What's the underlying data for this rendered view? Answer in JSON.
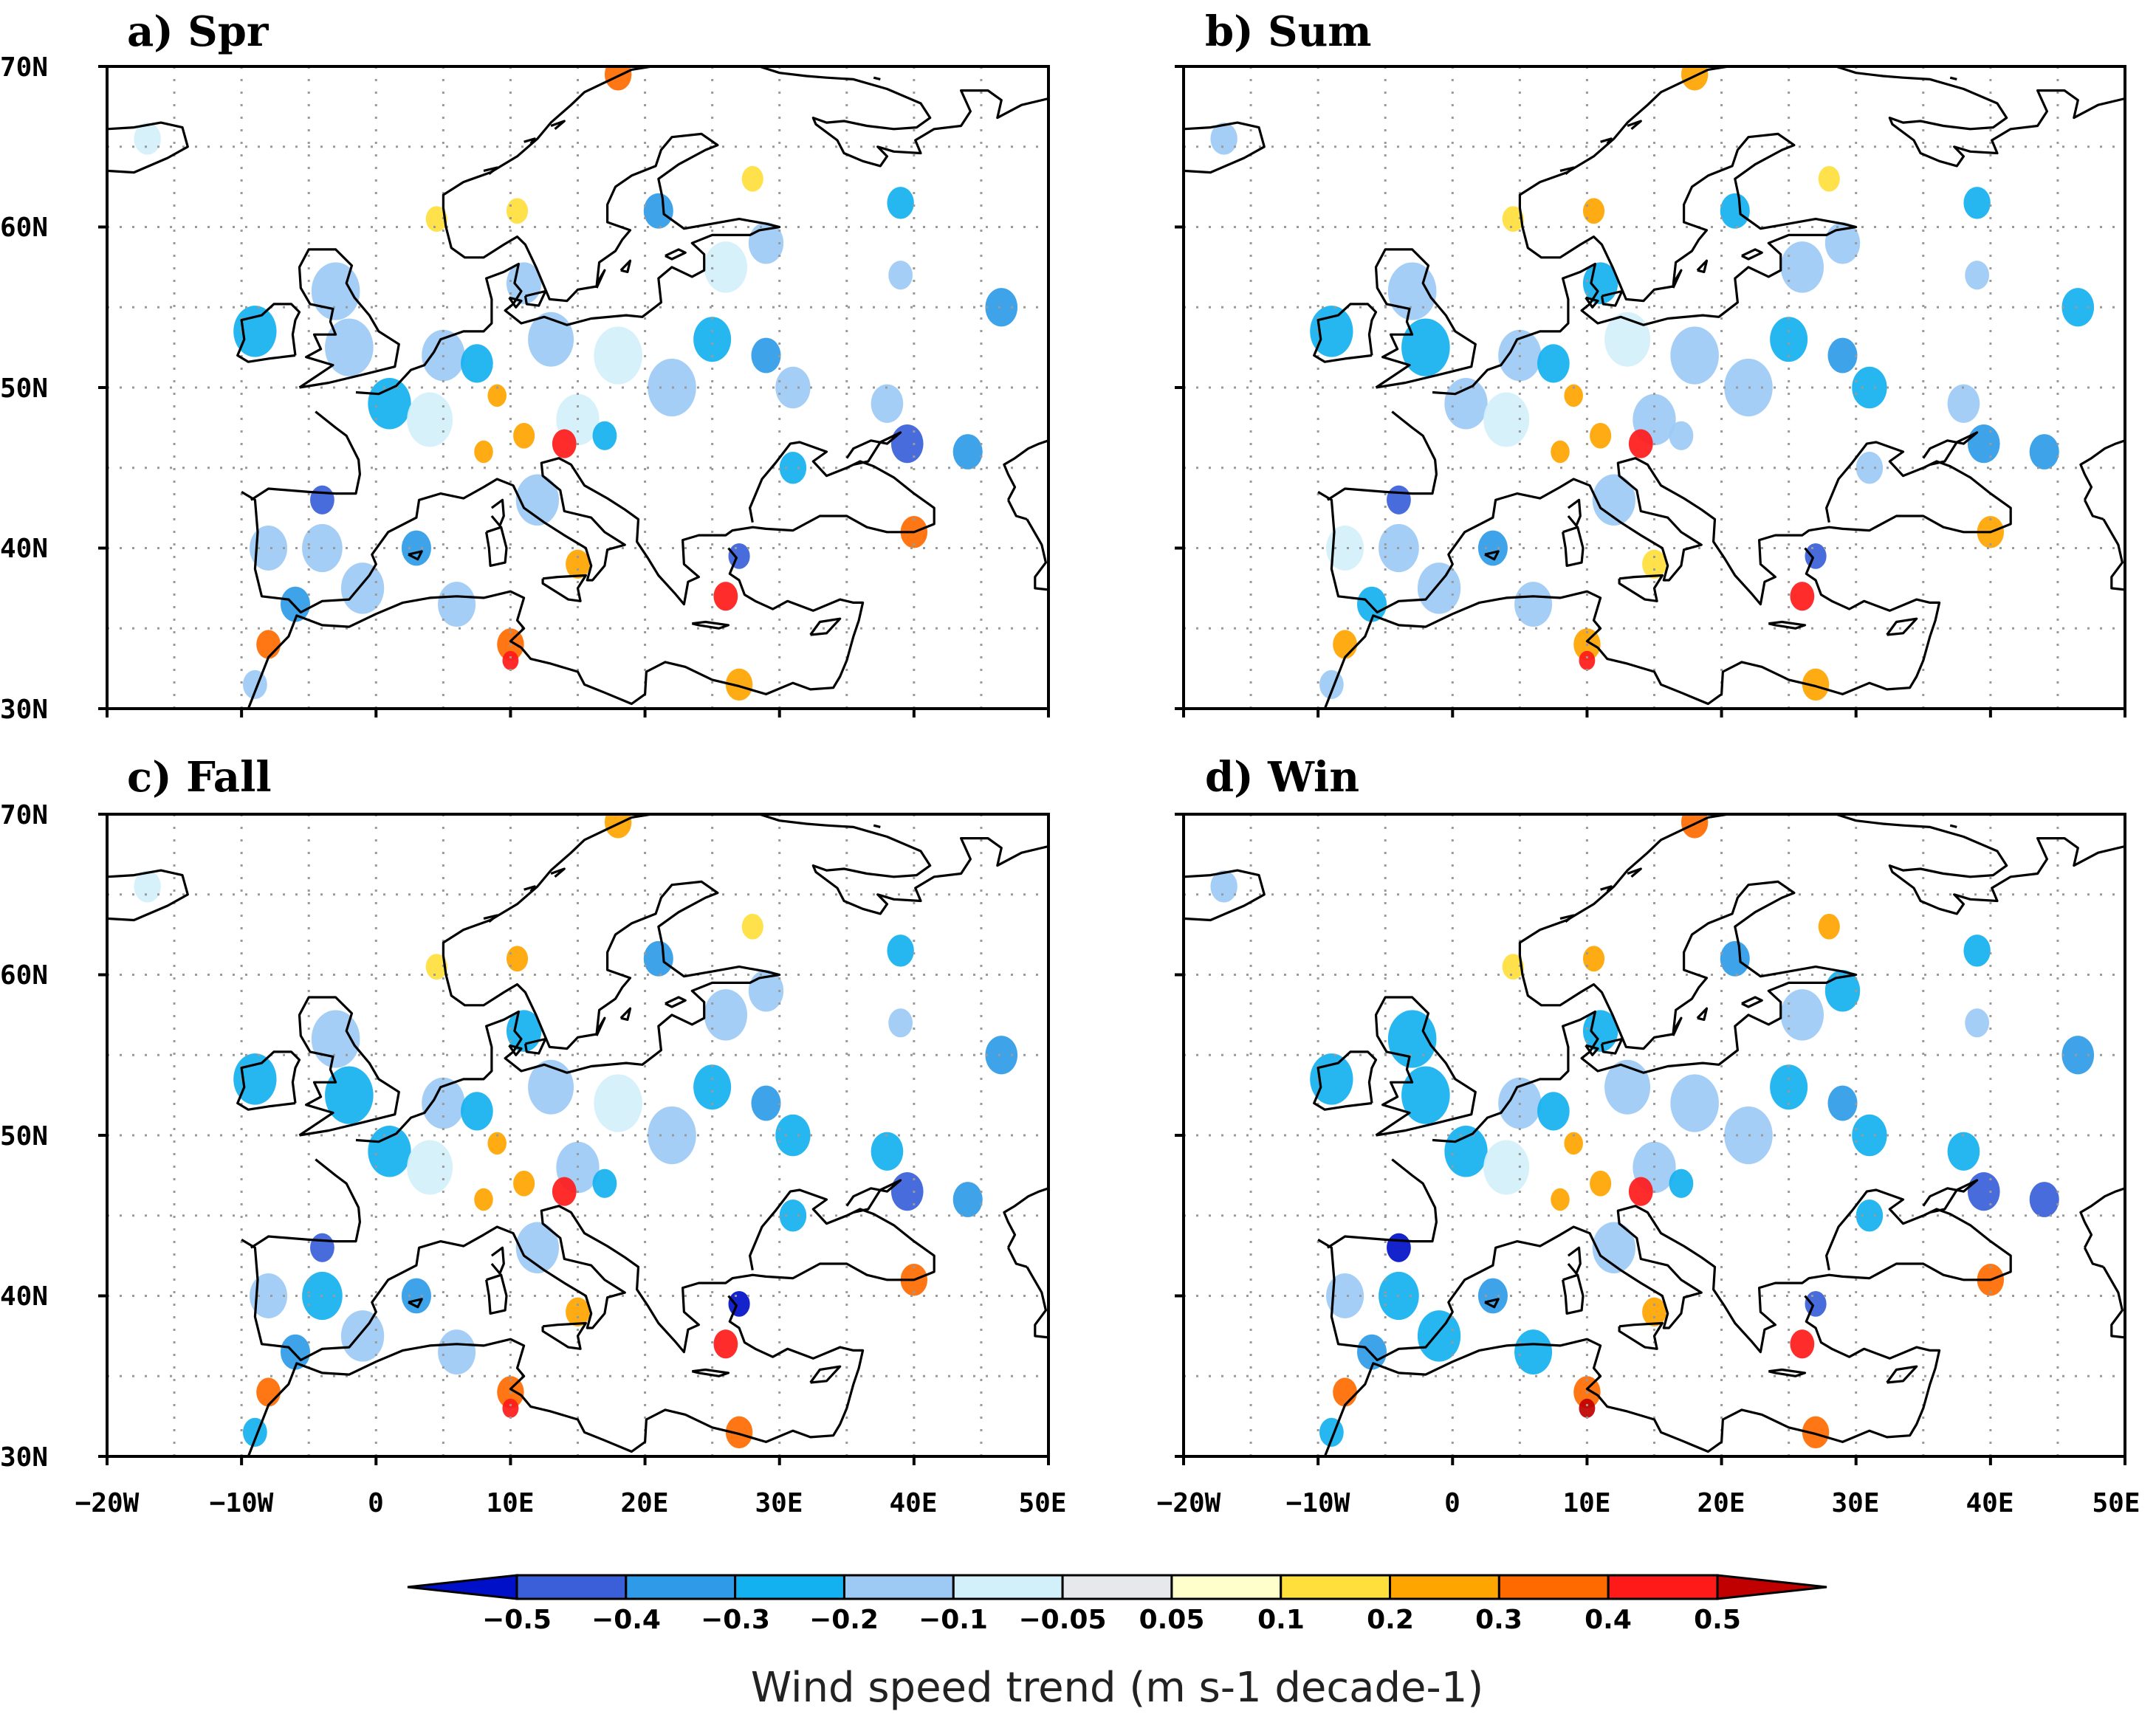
{
  "chart_data": {
    "type": "map",
    "variable_label": "Wind speed trend (m s-1 decade-1)",
    "lon_range": [
      -20,
      50
    ],
    "lat_range": [
      30,
      70
    ],
    "lon_ticks": [
      "−20W",
      "−10W",
      "0",
      "10E",
      "20E",
      "30E",
      "40E",
      "50E"
    ],
    "lat_ticks": [
      "30N",
      "40N",
      "50N",
      "60N",
      "70N"
    ],
    "lon_tick_values": [
      -20,
      -10,
      0,
      10,
      20,
      30,
      40,
      50
    ],
    "lat_tick_values": [
      30,
      40,
      50,
      60,
      70
    ],
    "dotted_grid": true,
    "panels": [
      {
        "title": "a) Spr",
        "season": "spring"
      },
      {
        "title": "b) Sum",
        "season": "summer"
      },
      {
        "title": "c) Fall",
        "season": "fall"
      },
      {
        "title": "d) Win",
        "season": "winter"
      }
    ],
    "colorbar": {
      "labels": [
        "−0.5",
        "−0.4",
        "−0.3",
        "−0.2",
        "−0.1",
        "−0.05",
        "0.05",
        "0.1",
        "0.2",
        "0.3",
        "0.4",
        "0.5"
      ],
      "colors": [
        "#3a5fd9",
        "#2f9be8",
        "#14b1f0",
        "#9ccaf5",
        "#d2f0fa",
        "#e6e8ec",
        "#ffffcc",
        "#ffdf3c",
        "#ffa500",
        "#ff6a00",
        "#ff1a1a"
      ],
      "under_color": "#0010c8",
      "over_color": "#c00000",
      "extend": "both"
    },
    "trend_cells": [
      {
        "lon": -9,
        "lat": 53.5,
        "v": -0.25,
        "r": 1.6
      },
      {
        "lon": -3,
        "lat": 56,
        "v": -0.18,
        "r": 1.8
      },
      {
        "lon": -2,
        "lat": 52.5,
        "v": -0.22,
        "r": 1.8
      },
      {
        "lon": 1,
        "lat": 49,
        "v": -0.2,
        "r": 1.6
      },
      {
        "lon": 5,
        "lat": 52,
        "v": -0.12,
        "r": 1.6
      },
      {
        "lon": 4,
        "lat": 48,
        "v": -0.08,
        "r": 1.7
      },
      {
        "lon": 7.5,
        "lat": 51.5,
        "v": -0.25,
        "r": 1.2
      },
      {
        "lon": 11,
        "lat": 56.5,
        "v": -0.22,
        "r": 1.3
      },
      {
        "lon": 13,
        "lat": 53,
        "v": -0.12,
        "r": 1.7
      },
      {
        "lon": 18,
        "lat": 52,
        "v": -0.1,
        "r": 1.8
      },
      {
        "lon": 22,
        "lat": 50,
        "v": -0.15,
        "r": 1.8
      },
      {
        "lon": 25,
        "lat": 53,
        "v": -0.25,
        "r": 1.4
      },
      {
        "lon": 26,
        "lat": 57.5,
        "v": -0.12,
        "r": 1.6
      },
      {
        "lon": 21,
        "lat": 61,
        "v": -0.3,
        "r": 1.1
      },
      {
        "lon": 29,
        "lat": 59,
        "v": -0.2,
        "r": 1.3
      },
      {
        "lon": 29,
        "lat": 52,
        "v": -0.35,
        "r": 1.1
      },
      {
        "lon": 31,
        "lat": 50,
        "v": -0.2,
        "r": 1.3
      },
      {
        "lon": 15,
        "lat": 48,
        "v": -0.12,
        "r": 1.6
      },
      {
        "lon": 14,
        "lat": 46.5,
        "v": 0.45,
        "r": 0.9
      },
      {
        "lon": 11,
        "lat": 47,
        "v": 0.25,
        "r": 0.8
      },
      {
        "lon": 17,
        "lat": 47,
        "v": -0.2,
        "r": 0.9
      },
      {
        "lon": 8,
        "lat": 46,
        "v": 0.25,
        "r": 0.7
      },
      {
        "lon": 9,
        "lat": 49.5,
        "v": 0.22,
        "r": 0.7
      },
      {
        "lon": 12,
        "lat": 43,
        "v": -0.15,
        "r": 1.6
      },
      {
        "lon": 15,
        "lat": 39,
        "v": 0.22,
        "r": 0.9
      },
      {
        "lon": 3,
        "lat": 40,
        "v": -0.35,
        "r": 1.1
      },
      {
        "lon": -4,
        "lat": 43,
        "v": -0.45,
        "r": 0.9
      },
      {
        "lon": -4,
        "lat": 40,
        "v": -0.2,
        "r": 1.5
      },
      {
        "lon": -8,
        "lat": 40,
        "v": -0.1,
        "r": 1.4
      },
      {
        "lon": -1,
        "lat": 37.5,
        "v": -0.2,
        "r": 1.6
      },
      {
        "lon": -6,
        "lat": 36.5,
        "v": -0.3,
        "r": 1.1
      },
      {
        "lon": -8,
        "lat": 34,
        "v": 0.3,
        "r": 0.9
      },
      {
        "lon": -9,
        "lat": 31.5,
        "v": -0.2,
        "r": 0.9
      },
      {
        "lon": 6,
        "lat": 36.5,
        "v": -0.18,
        "r": 1.4
      },
      {
        "lon": 10,
        "lat": 34,
        "v": 0.3,
        "r": 1.0
      },
      {
        "lon": 10,
        "lat": 33,
        "v": 0.45,
        "r": 0.6
      },
      {
        "lon": 26,
        "lat": 37,
        "v": 0.45,
        "r": 0.9
      },
      {
        "lon": 27,
        "lat": 39.5,
        "v": -0.45,
        "r": 0.8
      },
      {
        "lon": 31,
        "lat": 45,
        "v": -0.2,
        "r": 1.0
      },
      {
        "lon": 40,
        "lat": 41,
        "v": 0.3,
        "r": 1.0
      },
      {
        "lon": 39.5,
        "lat": 46.5,
        "v": -0.4,
        "r": 1.2
      },
      {
        "lon": 44,
        "lat": 46,
        "v": -0.35,
        "r": 1.1
      },
      {
        "lon": 38,
        "lat": 49,
        "v": -0.2,
        "r": 1.2
      },
      {
        "lon": 46.5,
        "lat": 55,
        "v": -0.3,
        "r": 1.2
      },
      {
        "lon": 39,
        "lat": 61.5,
        "v": -0.25,
        "r": 1.0
      },
      {
        "lon": 39,
        "lat": 57,
        "v": -0.12,
        "r": 0.9
      },
      {
        "lon": 27,
        "lat": 31.5,
        "v": 0.28,
        "r": 1.0
      },
      {
        "lon": 18,
        "lat": 69.5,
        "v": 0.28,
        "r": 1.0
      },
      {
        "lon": 10.5,
        "lat": 61,
        "v": 0.2,
        "r": 0.8
      },
      {
        "lon": 4.5,
        "lat": 60.5,
        "v": 0.15,
        "r": 0.8
      },
      {
        "lon": 28,
        "lat": 63,
        "v": 0.18,
        "r": 0.8
      },
      {
        "lon": -17,
        "lat": 65.5,
        "v": -0.1,
        "r": 1.0
      }
    ]
  }
}
